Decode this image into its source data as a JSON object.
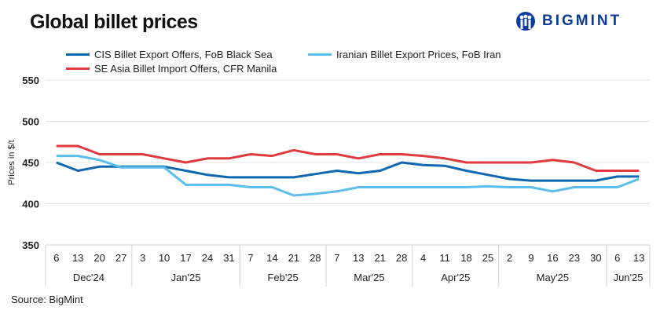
{
  "title": "Global billet prices",
  "logo": {
    "text": "BIGMINT",
    "color": "#0b3c9c"
  },
  "source": "Source: BigMint",
  "chart_data": {
    "type": "line",
    "title": "Global billet prices",
    "ylabel": "Prices in $/t",
    "xlabel": "",
    "ylim": [
      350,
      550
    ],
    "yticks": [
      350,
      400,
      450,
      500,
      550
    ],
    "grid": true,
    "legend_placement": "top",
    "x": [
      "6",
      "13",
      "20",
      "27",
      "3",
      "10",
      "17",
      "24",
      "31",
      "7",
      "14",
      "21",
      "28",
      "7",
      "13",
      "21",
      "28",
      "4",
      "11",
      "18",
      "25",
      "2",
      "9",
      "16",
      "23",
      "30",
      "6",
      "13"
    ],
    "months": [
      {
        "label": "Dec'24",
        "count": 4
      },
      {
        "label": "Jan'25",
        "count": 5
      },
      {
        "label": "Feb'25",
        "count": 4
      },
      {
        "label": "Mar'25",
        "count": 4
      },
      {
        "label": "Apr'25",
        "count": 4
      },
      {
        "label": "May'25",
        "count": 5
      },
      {
        "label": "Jun'25",
        "count": 2
      }
    ],
    "series": [
      {
        "name": "CIS Billet Export Offers, FoB Black Sea",
        "color": "#0f67b1",
        "values": [
          450,
          440,
          445,
          445,
          445,
          445,
          440,
          435,
          432,
          432,
          432,
          432,
          436,
          440,
          437,
          440,
          450,
          447,
          446,
          440,
          435,
          430,
          428,
          428,
          428,
          428,
          433,
          433
        ]
      },
      {
        "name": "Iranian Billet Export Prices, FoB Iran",
        "color": "#5bbdea",
        "values": [
          458,
          458,
          453,
          444,
          444,
          444,
          423,
          423,
          423,
          420,
          420,
          410,
          412,
          415,
          420,
          420,
          420,
          420,
          420,
          420,
          421,
          420,
          420,
          415,
          420,
          420,
          420,
          430
        ]
      },
      {
        "name": "SE Asia Billet Import Offers, CFR Manila",
        "color": "#e03a3e",
        "values": [
          470,
          470,
          460,
          460,
          460,
          455,
          450,
          455,
          455,
          460,
          458,
          465,
          460,
          460,
          455,
          460,
          460,
          458,
          455,
          450,
          450,
          450,
          450,
          453,
          450,
          440,
          440,
          440
        ]
      }
    ]
  }
}
